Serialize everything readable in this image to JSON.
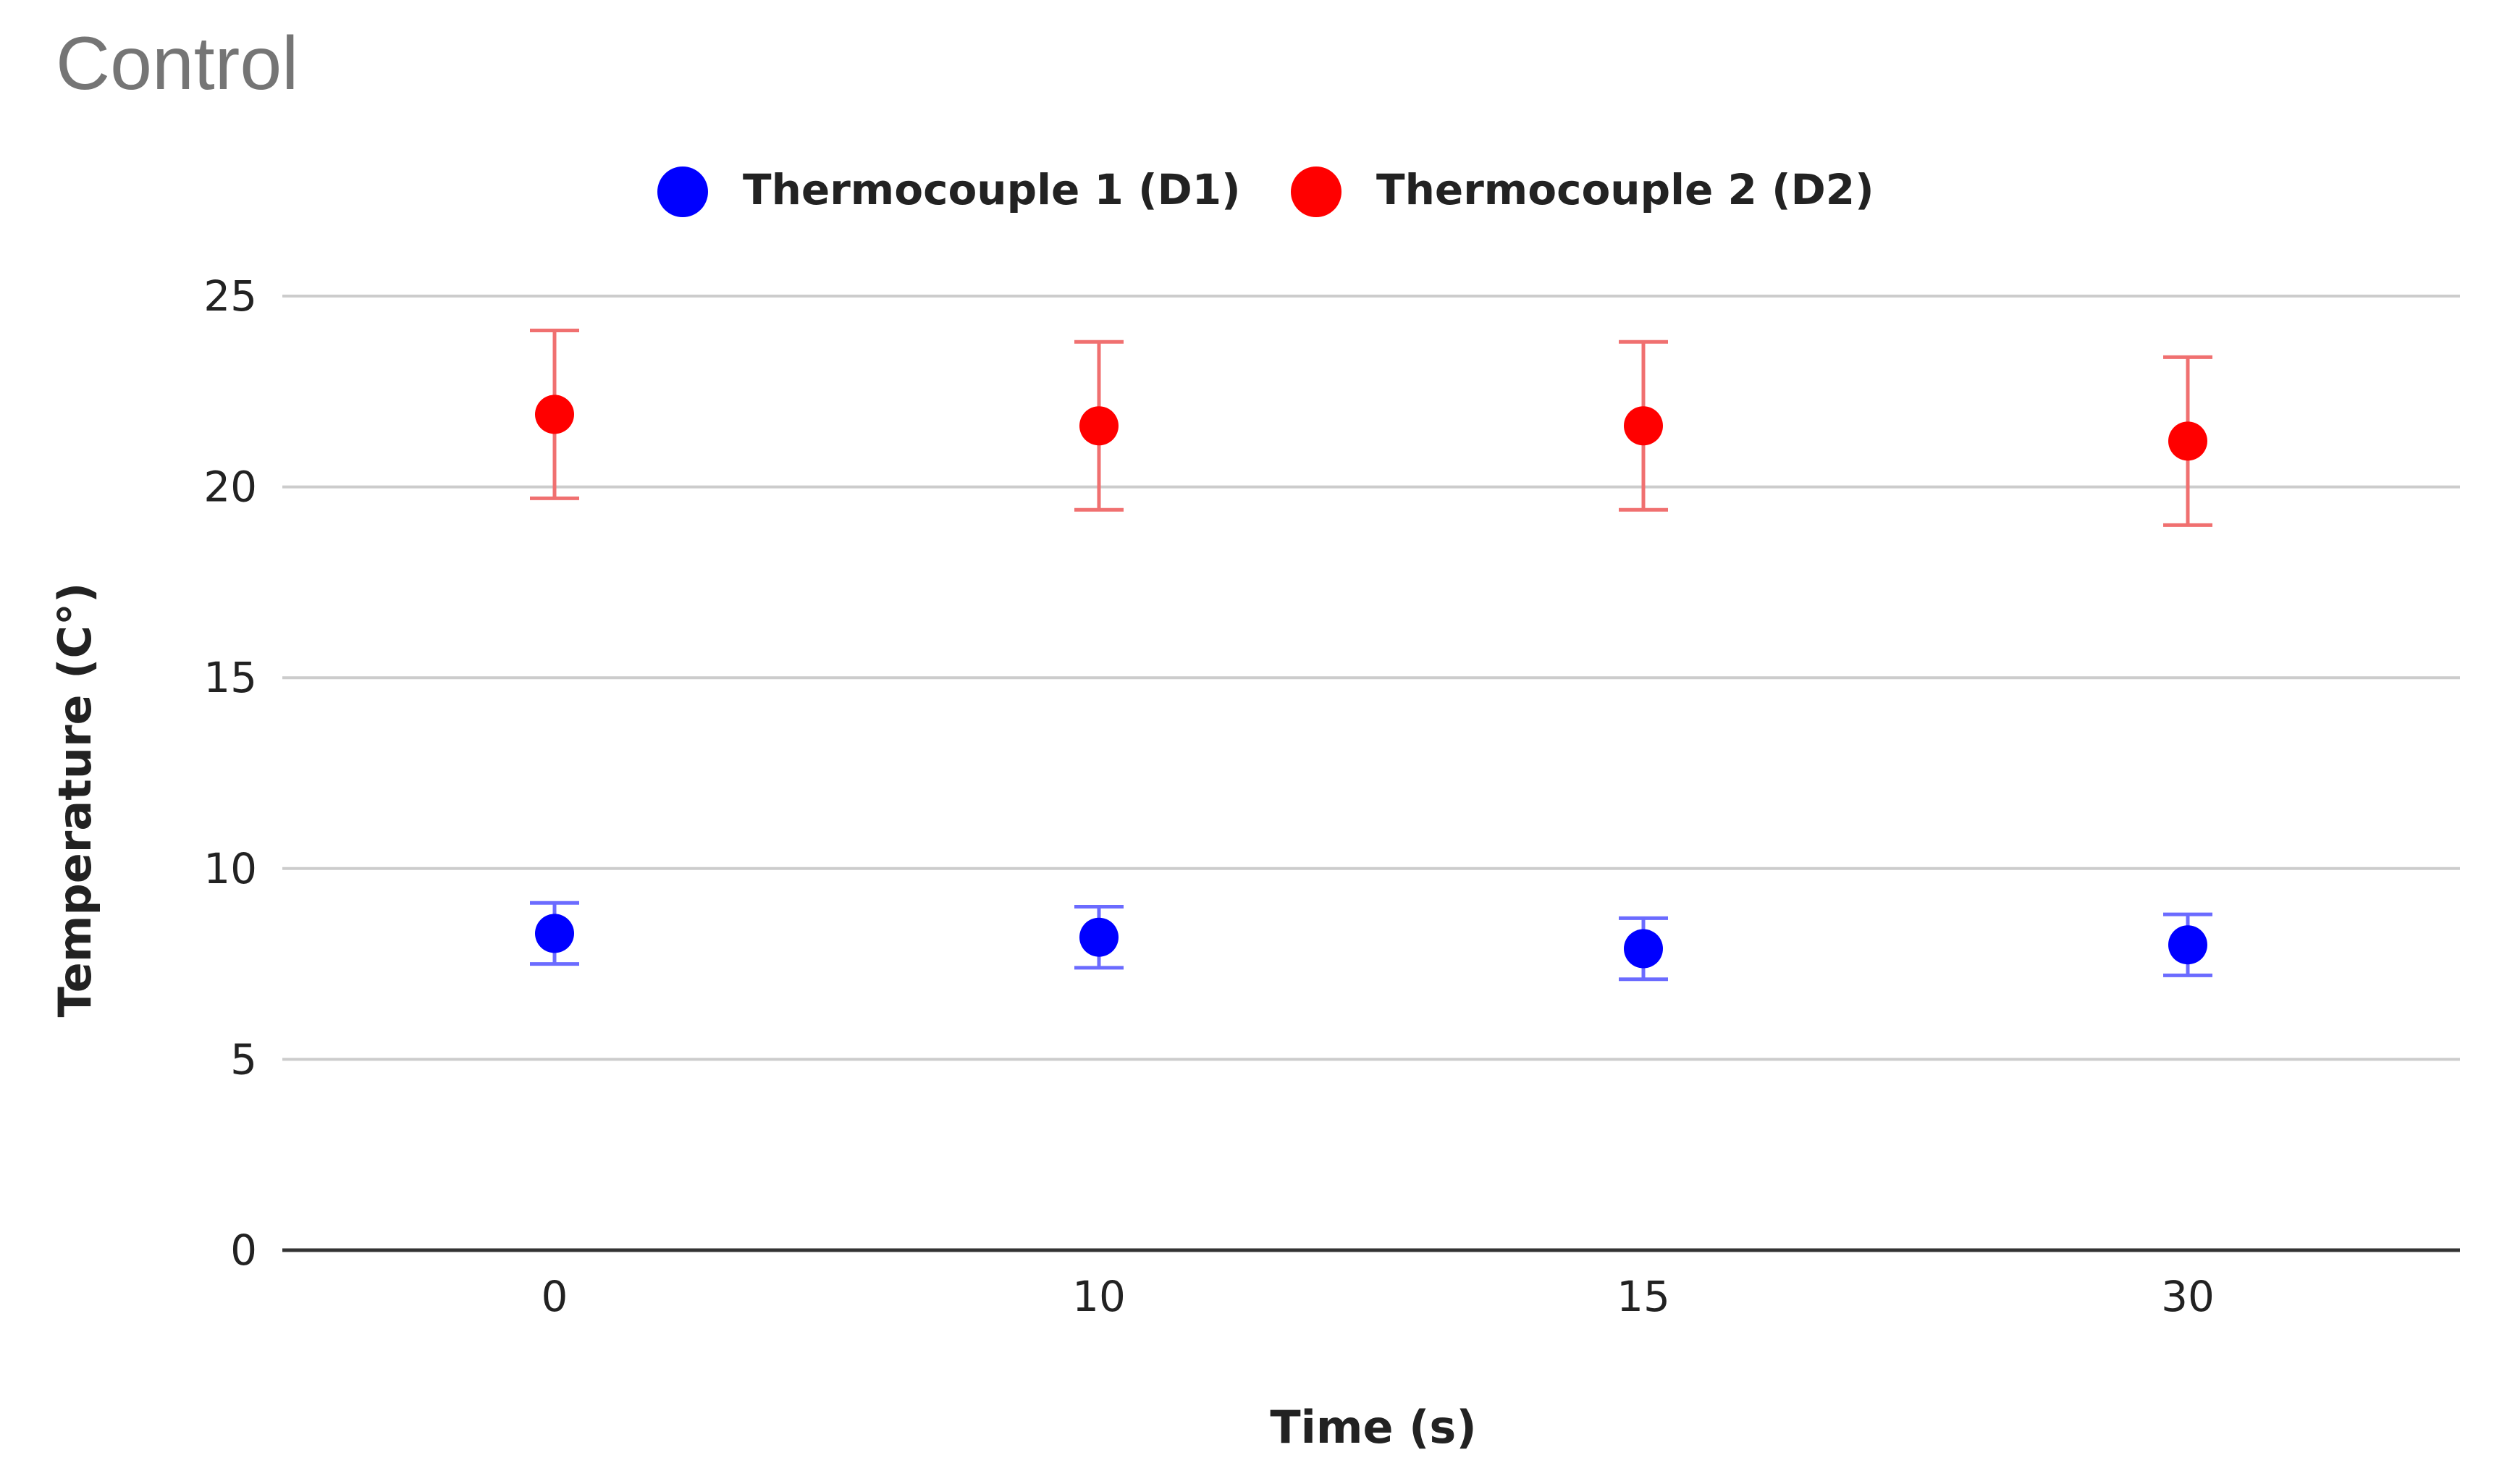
{
  "chart_data": {
    "type": "scatter",
    "title": "Control",
    "xlabel": "Time (s)",
    "ylabel": "Temperature (C°)",
    "categories": [
      "0",
      "10",
      "15",
      "30"
    ],
    "ylim": [
      0,
      25
    ],
    "yticks": [
      0,
      5,
      10,
      15,
      20,
      25
    ],
    "grid": true,
    "legend_position": "top-center",
    "series": [
      {
        "name": "Thermocouple 1 (D1)",
        "color": "#0000ff",
        "error_color": "#6b6bff",
        "values": [
          8.3,
          8.2,
          7.9,
          8.0
        ],
        "error": [
          0.8,
          0.8,
          0.8,
          0.8
        ]
      },
      {
        "name": "Thermocouple 2 (D2)",
        "color": "#ff0000",
        "error_color": "#f07070",
        "values": [
          21.9,
          21.6,
          21.6,
          21.2
        ],
        "error": [
          2.2,
          2.2,
          2.2,
          2.2
        ]
      }
    ]
  }
}
